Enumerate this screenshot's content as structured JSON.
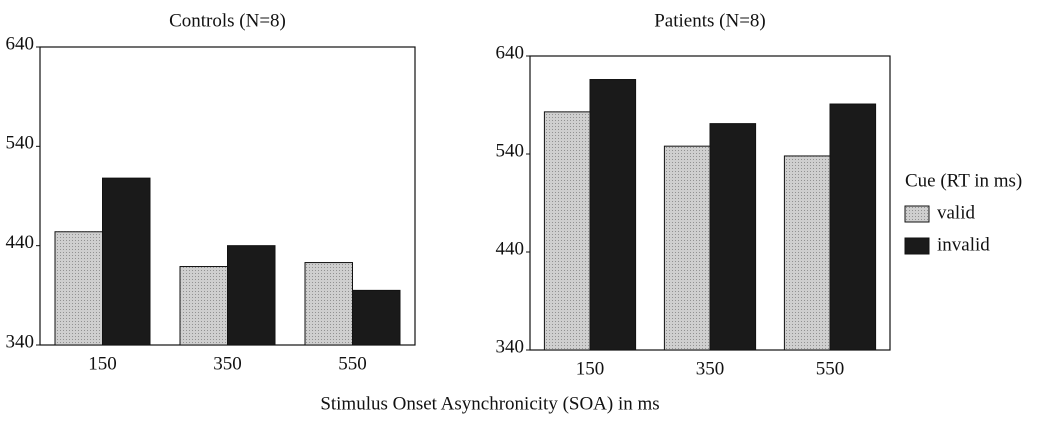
{
  "xlabel": "Stimulus Onset Asynchronicity (SOA) in ms",
  "legend": {
    "title": "Cue (RT in ms)",
    "position": "right"
  },
  "chart_data": [
    {
      "type": "bar",
      "title": "Controls (N=8)",
      "categories": [
        "150",
        "350",
        "550"
      ],
      "series": [
        {
          "name": "valid",
          "color": "#cfcfcf",
          "values": [
            454,
            419,
            423
          ]
        },
        {
          "name": "invalid",
          "color": "#1a1a1a",
          "values": [
            508,
            440,
            395
          ]
        }
      ],
      "ylim": [
        340,
        640
      ],
      "yticks": [
        340,
        440,
        540,
        640
      ],
      "grid": false
    },
    {
      "type": "bar",
      "title": "Patients (N=8)",
      "categories": [
        "150",
        "350",
        "550"
      ],
      "series": [
        {
          "name": "valid",
          "color": "#cfcfcf",
          "values": [
            583,
            548,
            538
          ]
        },
        {
          "name": "invalid",
          "color": "#1a1a1a",
          "values": [
            616,
            571,
            591
          ]
        }
      ],
      "ylim": [
        340,
        640
      ],
      "yticks": [
        340,
        440,
        540,
        640
      ],
      "grid": false
    }
  ]
}
